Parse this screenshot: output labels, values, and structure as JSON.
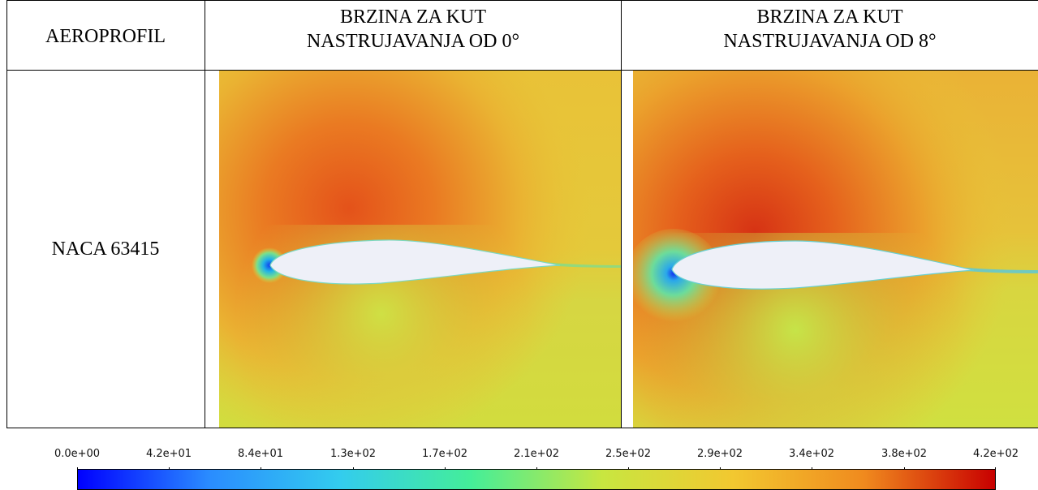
{
  "table": {
    "header": {
      "col1": "AEROPROFIL",
      "col2_line1": "BRZINA ZA KUT",
      "col2_line2": "NASTRUJAVANJA OD 0°",
      "col3_line1": "BRZINA ZA KUT",
      "col3_line2": "NASTRUJAVANJA OD 8°"
    },
    "row": {
      "label": "NACA 63415"
    }
  },
  "colorbar": {
    "labels": [
      "0.0e+00",
      "4.2e+01",
      "8.4e+01",
      "1.3e+02",
      "1.7e+02",
      "2.1e+02",
      "2.5e+02",
      "2.9e+02",
      "3.4e+02",
      "3.8e+02",
      "4.2e+02"
    ],
    "colors": [
      "#0000ff",
      "#2a8cff",
      "#33ccee",
      "#44ee99",
      "#c8e640",
      "#f2c830",
      "#f08a1e",
      "#c80000"
    ]
  },
  "panels": {
    "field_colors": {
      "background": "#e8c637",
      "upper_high": "#e8661e",
      "lower": "#d8e040",
      "stagnation": "#1a9ce6",
      "airfoil_fill": "#eef0f8"
    }
  }
}
